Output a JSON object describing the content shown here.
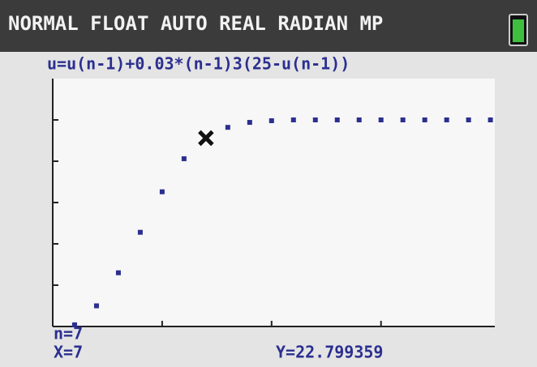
{
  "status_bar": {
    "text": "NORMAL FLOAT AUTO REAL RADIAN MP"
  },
  "chart_data": {
    "type": "scatter",
    "title": "u=u(n-1)+0.03*(n-1)3(25-u(n-1))",
    "x": [
      1,
      2,
      3,
      4,
      5,
      6,
      7,
      8,
      9,
      10,
      11,
      12,
      13,
      14,
      15,
      16,
      17,
      18,
      19,
      20
    ],
    "values": [
      0.2,
      2.5,
      6.5,
      11.4,
      16.3,
      20.3,
      22.8,
      24.1,
      24.7,
      24.9,
      25,
      25,
      25,
      25,
      25,
      25,
      25,
      25,
      25,
      25
    ],
    "color": "#2b2f8f",
    "xlim": [
      0,
      20.2
    ],
    "xticks": [
      5,
      10,
      15
    ],
    "ylim": [
      0,
      30
    ],
    "yticks": [
      5,
      10,
      15,
      20,
      25
    ]
  },
  "readout": {
    "n": "n=7",
    "x": "X=7",
    "y": "Y=22.799359"
  }
}
